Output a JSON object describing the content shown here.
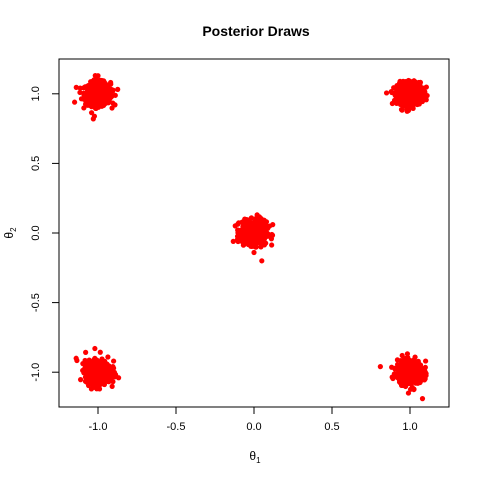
{
  "chart_data": {
    "type": "scatter",
    "title": "Posterior Draws",
    "xlabel": {
      "base": "θ",
      "sub": "1"
    },
    "ylabel": {
      "base": "θ",
      "sub": "2"
    },
    "xlim": [
      -1.25,
      1.25
    ],
    "ylim": [
      -1.25,
      1.25
    ],
    "x_ticks": [
      -1.0,
      -0.5,
      0.0,
      0.5,
      1.0
    ],
    "x_tick_labels": [
      "-1.0",
      "-0.5",
      "0.0",
      "0.5",
      "1.0"
    ],
    "y_ticks": [
      -1.0,
      -0.5,
      0.0,
      0.5,
      1.0
    ],
    "y_tick_labels": [
      "-1.0",
      "-0.5",
      "0.0",
      "0.5",
      "1.0"
    ],
    "grid": false,
    "legend": "none",
    "point_color": "#ff0000",
    "clusters": [
      {
        "center": [
          -1.0,
          1.0
        ],
        "sd": 0.04
      },
      {
        "center": [
          1.0,
          1.0
        ],
        "sd": 0.04
      },
      {
        "center": [
          0.0,
          0.0
        ],
        "sd": 0.04
      },
      {
        "center": [
          -1.0,
          -1.0
        ],
        "sd": 0.04
      },
      {
        "center": [
          1.0,
          -1.0
        ],
        "sd": 0.04
      }
    ],
    "points": [
      [
        -1.0,
        1.0
      ],
      [
        -0.97,
        1.03
      ],
      [
        -1.03,
        0.98
      ],
      [
        -0.99,
        1.06
      ],
      [
        -1.02,
        0.94
      ],
      [
        -0.95,
        1.01
      ],
      [
        -1.06,
        1.02
      ],
      [
        -1.01,
        1.1
      ],
      [
        -1.03,
        0.82
      ],
      [
        -1.15,
        0.94
      ],
      [
        -0.93,
        0.99
      ],
      [
        -1.08,
        1.05
      ],
      [
        -1.0,
        1.13
      ],
      [
        -0.98,
        0.96
      ],
      [
        -1.04,
        1.08
      ],
      [
        1.0,
        1.0
      ],
      [
        0.98,
        1.03
      ],
      [
        1.03,
        0.98
      ],
      [
        1.01,
        1.07
      ],
      [
        0.97,
        0.95
      ],
      [
        1.06,
        1.01
      ],
      [
        0.93,
        1.02
      ],
      [
        1.0,
        1.09
      ],
      [
        0.99,
        0.88
      ],
      [
        1.09,
        0.97
      ],
      [
        1.04,
        1.04
      ],
      [
        0.95,
        0.99
      ],
      [
        0.0,
        0.0
      ],
      [
        0.03,
        0.02
      ],
      [
        -0.03,
        -0.02
      ],
      [
        0.01,
        0.07
      ],
      [
        -0.02,
        -0.06
      ],
      [
        0.06,
        0.01
      ],
      [
        -0.07,
        0.02
      ],
      [
        0.02,
        0.13
      ],
      [
        0.05,
        -0.2
      ],
      [
        0.0,
        -0.14
      ],
      [
        0.1,
        0.05
      ],
      [
        -0.1,
        0.02
      ],
      [
        0.04,
        -0.05
      ],
      [
        -0.04,
        0.05
      ],
      [
        0.12,
        0.06
      ],
      [
        -1.0,
        -1.0
      ],
      [
        -0.97,
        -0.98
      ],
      [
        -1.03,
        -1.02
      ],
      [
        -1.0,
        -0.93
      ],
      [
        -1.01,
        -1.07
      ],
      [
        -0.94,
        -0.99
      ],
      [
        -1.07,
        -1.01
      ],
      [
        -1.02,
        -0.83
      ],
      [
        -0.99,
        -1.12
      ],
      [
        -1.14,
        -0.9
      ],
      [
        -0.9,
        -0.92
      ],
      [
        -1.05,
        -1.05
      ],
      [
        -0.96,
        -1.04
      ],
      [
        -1.08,
        -0.96
      ],
      [
        1.0,
        -1.0
      ],
      [
        0.97,
        -1.02
      ],
      [
        1.03,
        -0.98
      ],
      [
        1.01,
        -0.93
      ],
      [
        0.98,
        -1.07
      ],
      [
        1.06,
        -1.01
      ],
      [
        0.93,
        -0.99
      ],
      [
        1.02,
        -1.12
      ],
      [
        0.81,
        -0.96
      ],
      [
        1.08,
        -1.19
      ],
      [
        1.1,
        -0.92
      ],
      [
        0.95,
        -0.88
      ],
      [
        1.05,
        -1.08
      ],
      [
        0.99,
        -1.15
      ]
    ]
  }
}
